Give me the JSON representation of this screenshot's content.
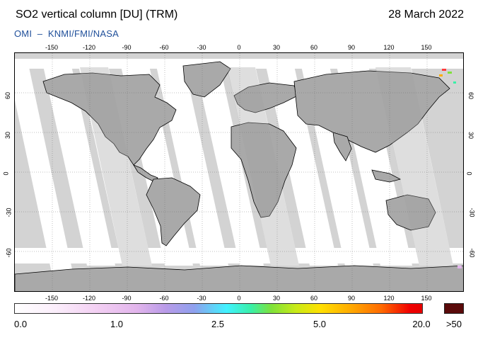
{
  "header": {
    "title": "SO2 vertical column [DU] (TRM)",
    "date": "28 March 2022",
    "credit": "OMI  –  KNMI/FMI/NASA"
  },
  "map": {
    "lon_ticks": [
      "-150",
      "-120",
      "-90",
      "-60",
      "-30",
      "0",
      "30",
      "60",
      "90",
      "120",
      "150"
    ],
    "lat_ticks": [
      "60",
      "30",
      "0",
      "-30",
      "-60"
    ],
    "colors": {
      "land": "#a9a9a9",
      "no_data": "#d3d3d3",
      "low_value": "#ffffff",
      "coast": "#000000"
    }
  },
  "colorbar": {
    "labels": [
      "0.0",
      "1.0",
      "2.5",
      "5.0",
      "20.0"
    ],
    "overflow_label": ">50",
    "overflow_color": "#5a0a0a"
  }
}
